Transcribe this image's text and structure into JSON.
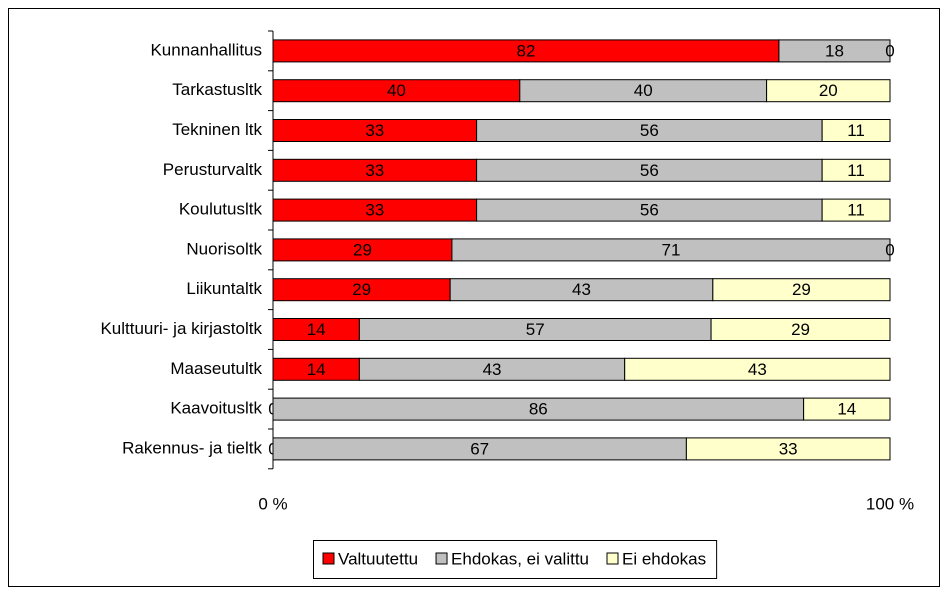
{
  "chart_data": {
    "type": "bar",
    "orientation": "horizontal",
    "stacking": "percent",
    "categories": [
      "Kunnanhallitus",
      "Tarkastusltk",
      "Tekninen ltk",
      "Perusturvaltk",
      "Koulutusltk",
      "Nuorisoltk",
      "Liikuntaltk",
      "Kulttuuri- ja kirjastoltk",
      "Maaseutultk",
      "Kaavoitusltk",
      "Rakennus- ja tieltk"
    ],
    "series": [
      {
        "name": "Valtuutettu",
        "color": "#ff0000",
        "values": [
          82,
          40,
          33,
          33,
          33,
          29,
          29,
          14,
          14,
          0,
          0
        ]
      },
      {
        "name": "Ehdokas, ei valittu",
        "color": "#c0c0c0",
        "values": [
          18,
          40,
          56,
          56,
          56,
          71,
          43,
          57,
          43,
          86,
          67
        ]
      },
      {
        "name": "Ei ehdokas",
        "color": "#ffffcc",
        "values": [
          0,
          20,
          11,
          11,
          11,
          0,
          29,
          29,
          43,
          14,
          33
        ]
      }
    ],
    "xlim": [
      0,
      100
    ],
    "xticks": [
      {
        "value": 0,
        "label": "0 %"
      },
      {
        "value": 100,
        "label": "100 %"
      }
    ],
    "legend": "bottom"
  }
}
